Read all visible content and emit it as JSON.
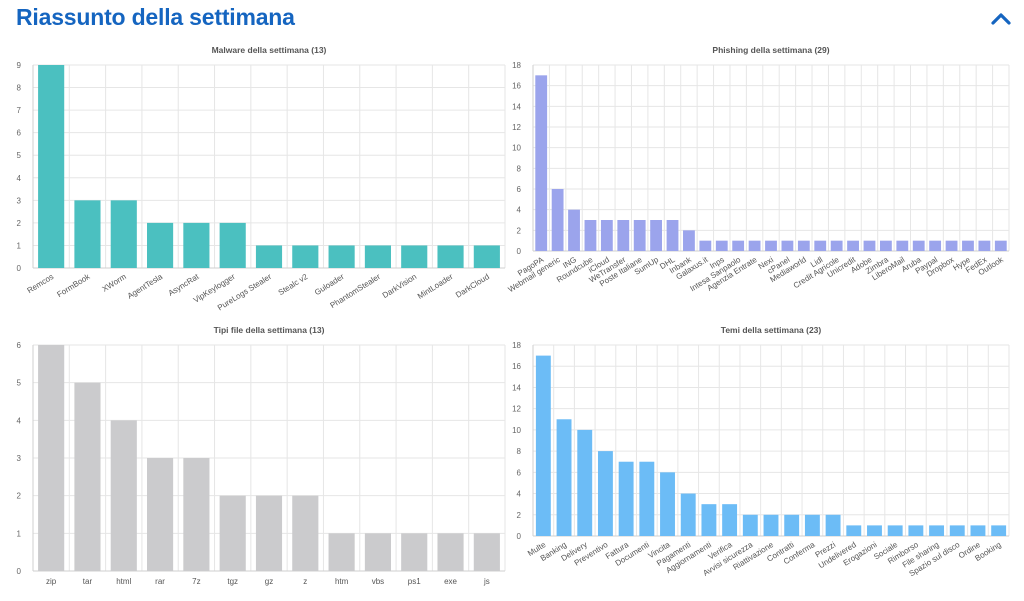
{
  "header": {
    "title": "Riassunto della settimana",
    "collapse_icon": "chevron-up-icon",
    "accent": "#1565c0"
  },
  "chart_data": [
    {
      "type": "bar",
      "title": "Malware della settimana (13)",
      "categories": [
        "Remcos",
        "FormBook",
        "XWorm",
        "AgentTesla",
        "AsyncRat",
        "VipKeylogger",
        "PureLogs Stealer",
        "Stealc v2",
        "Guloader",
        "PhantomStealer",
        "DarkVision",
        "MintLoader",
        "DarkCloud"
      ],
      "values": [
        9,
        3,
        3,
        2,
        2,
        2,
        1,
        1,
        1,
        1,
        1,
        1,
        1
      ],
      "ylim": [
        0,
        9
      ],
      "yticks": [
        0,
        1,
        2,
        3,
        4,
        5,
        6,
        7,
        8,
        9
      ],
      "color": "#4bc0c0",
      "xlabel": "",
      "ylabel": ""
    },
    {
      "type": "bar",
      "title": "Phishing della settimana (29)",
      "categories": [
        "PagoPA",
        "Webmail generic",
        "ING",
        "Roundcube",
        "iCloud",
        "WeTransfer",
        "Poste Italiane",
        "SumUp",
        "DHL",
        "Inbank",
        "Galaxus.it",
        "Inps",
        "Intesa Sanpaolo",
        "Agenzia Entrate",
        "Nexi",
        "cPanel",
        "Mediaworld",
        "Lidl",
        "Credit Agricole",
        "Unicredit",
        "Adobe",
        "Zimbra",
        "LiberoMail",
        "Aruba",
        "Paypal",
        "Dropbox",
        "Hype",
        "FedEx",
        "Outlook"
      ],
      "values": [
        17,
        6,
        4,
        3,
        3,
        3,
        3,
        3,
        3,
        2,
        1,
        1,
        1,
        1,
        1,
        1,
        1,
        1,
        1,
        1,
        1,
        1,
        1,
        1,
        1,
        1,
        1,
        1,
        1
      ],
      "ylim": [
        0,
        18
      ],
      "yticks": [
        0,
        2,
        4,
        6,
        8,
        10,
        12,
        14,
        16,
        18
      ],
      "color": "#9ba4ec",
      "xlabel": "",
      "ylabel": ""
    },
    {
      "type": "bar",
      "title": "Tipi file della settimana (13)",
      "categories": [
        "zip",
        "tar",
        "html",
        "rar",
        "7z",
        "tgz",
        "gz",
        "z",
        "htm",
        "vbs",
        "ps1",
        "exe",
        "js"
      ],
      "values": [
        6,
        5,
        4,
        3,
        3,
        2,
        2,
        2,
        1,
        1,
        1,
        1,
        1
      ],
      "ylim": [
        0,
        6
      ],
      "yticks": [
        0,
        1,
        2,
        3,
        4,
        5,
        6
      ],
      "color": "#cbcbcd",
      "xlabel": "",
      "ylabel": ""
    },
    {
      "type": "bar",
      "title": "Temi della settimana (23)",
      "categories": [
        "Multe",
        "Banking",
        "Delivery",
        "Preventivo",
        "Fattura",
        "Documenti",
        "Vincita",
        "Pagamenti",
        "Aggiornamenti",
        "Verifica",
        "Avvisi sicurezza",
        "Riattivazione",
        "Contratti",
        "Conferma",
        "Prezzi",
        "Undelivered",
        "Erogazioni",
        "Sociale",
        "Rimborso",
        "File sharing",
        "Spazio sul disco",
        "Ordine",
        "Booking"
      ],
      "values": [
        17,
        11,
        10,
        8,
        7,
        7,
        6,
        4,
        3,
        3,
        2,
        2,
        2,
        2,
        2,
        1,
        1,
        1,
        1,
        1,
        1,
        1,
        1
      ],
      "ylim": [
        0,
        18
      ],
      "yticks": [
        0,
        2,
        4,
        6,
        8,
        10,
        12,
        14,
        16,
        18
      ],
      "color": "#6cbcf6",
      "xlabel": "",
      "ylabel": ""
    }
  ]
}
